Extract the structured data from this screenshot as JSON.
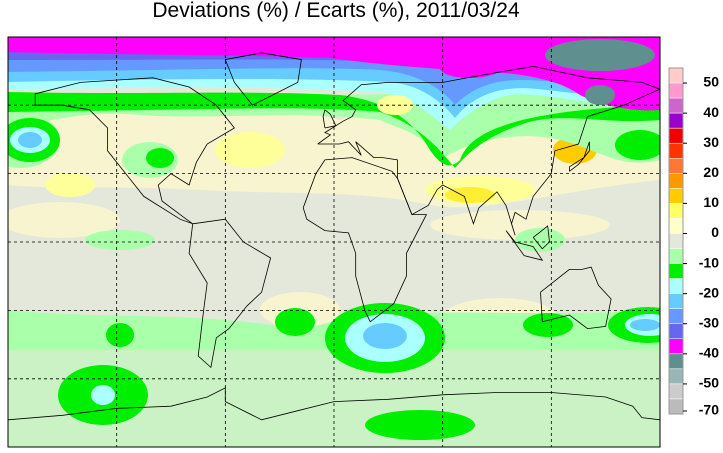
{
  "title": "Deviations (%) / Ecarts (%), 2011/03/24",
  "colorbar": {
    "colors": [
      "#ffcccc",
      "#ff99cc",
      "#cc66cc",
      "#9900cc",
      "#ee0000",
      "#ff3300",
      "#ff7733",
      "#ff9900",
      "#ffcc00",
      "#ffff66",
      "#ffffcc",
      "#e3e8da",
      "#aaffaa",
      "#00ee00",
      "#aaffff",
      "#66ccff",
      "#6699ff",
      "#6666ee",
      "#ff00ff",
      "#5f8f8f",
      "#99b5b5",
      "#cccccc",
      "#bbbbbb"
    ],
    "ticks": [
      50,
      40,
      30,
      20,
      10,
      0,
      -10,
      -20,
      -30,
      -40,
      -50,
      -70
    ]
  }
}
